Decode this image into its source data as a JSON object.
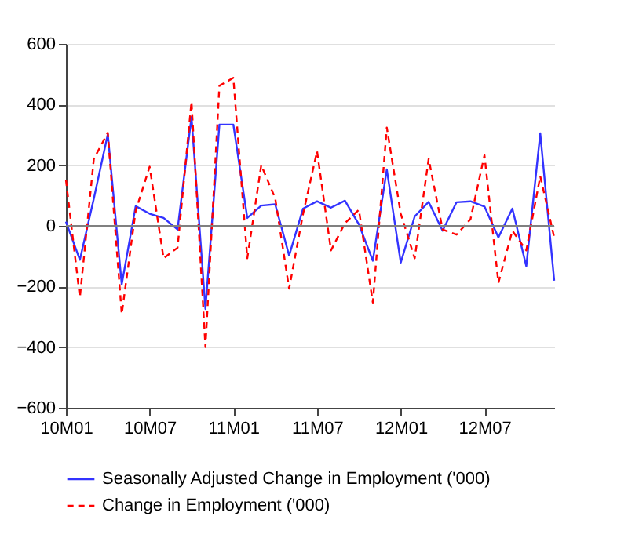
{
  "chart_data": {
    "type": "line",
    "categories": [
      "10M01",
      null,
      null,
      null,
      null,
      null,
      "10M07",
      null,
      null,
      null,
      null,
      null,
      "11M01",
      null,
      null,
      null,
      null,
      null,
      "11M07",
      null,
      null,
      null,
      null,
      null,
      "12M01",
      null,
      null,
      null,
      null,
      null,
      "12M07",
      null,
      null,
      null,
      null,
      null
    ],
    "series": [
      {
        "name": "Seasonally Adjusted Change in Employment ('000)",
        "color": "#3333ff",
        "line_style": "solid",
        "values": [
          14,
          -112,
          90,
          302,
          -193,
          65,
          40,
          26,
          -12,
          359,
          -274,
          334,
          334,
          26,
          67,
          71,
          -98,
          57,
          81,
          60,
          83,
          5,
          -115,
          186,
          -121,
          31,
          79,
          -16,
          78,
          81,
          64,
          -38,
          57,
          -133,
          305,
          -181
        ]
      },
      {
        "name": "Change in Employment ('000)",
        "color": "#ff0000",
        "line_style": "dashed",
        "values": [
          152,
          -236,
          221,
          307,
          -291,
          50,
          195,
          -107,
          -72,
          410,
          -400,
          462,
          488,
          -107,
          200,
          91,
          -207,
          40,
          246,
          -81,
          9,
          53,
          -253,
          324,
          40,
          -107,
          221,
          -12,
          -29,
          22,
          233,
          -188,
          -16,
          -81,
          164,
          -38
        ]
      }
    ],
    "ylim": [
      -600,
      600
    ],
    "yticks": [
      -600,
      -400,
      -200,
      0,
      200,
      400,
      600
    ],
    "grid": "y",
    "legend": "bottom",
    "marker": "none",
    "ref_lines": [
      {
        "axis": "y",
        "value": 0,
        "color": "#808080"
      }
    ]
  }
}
